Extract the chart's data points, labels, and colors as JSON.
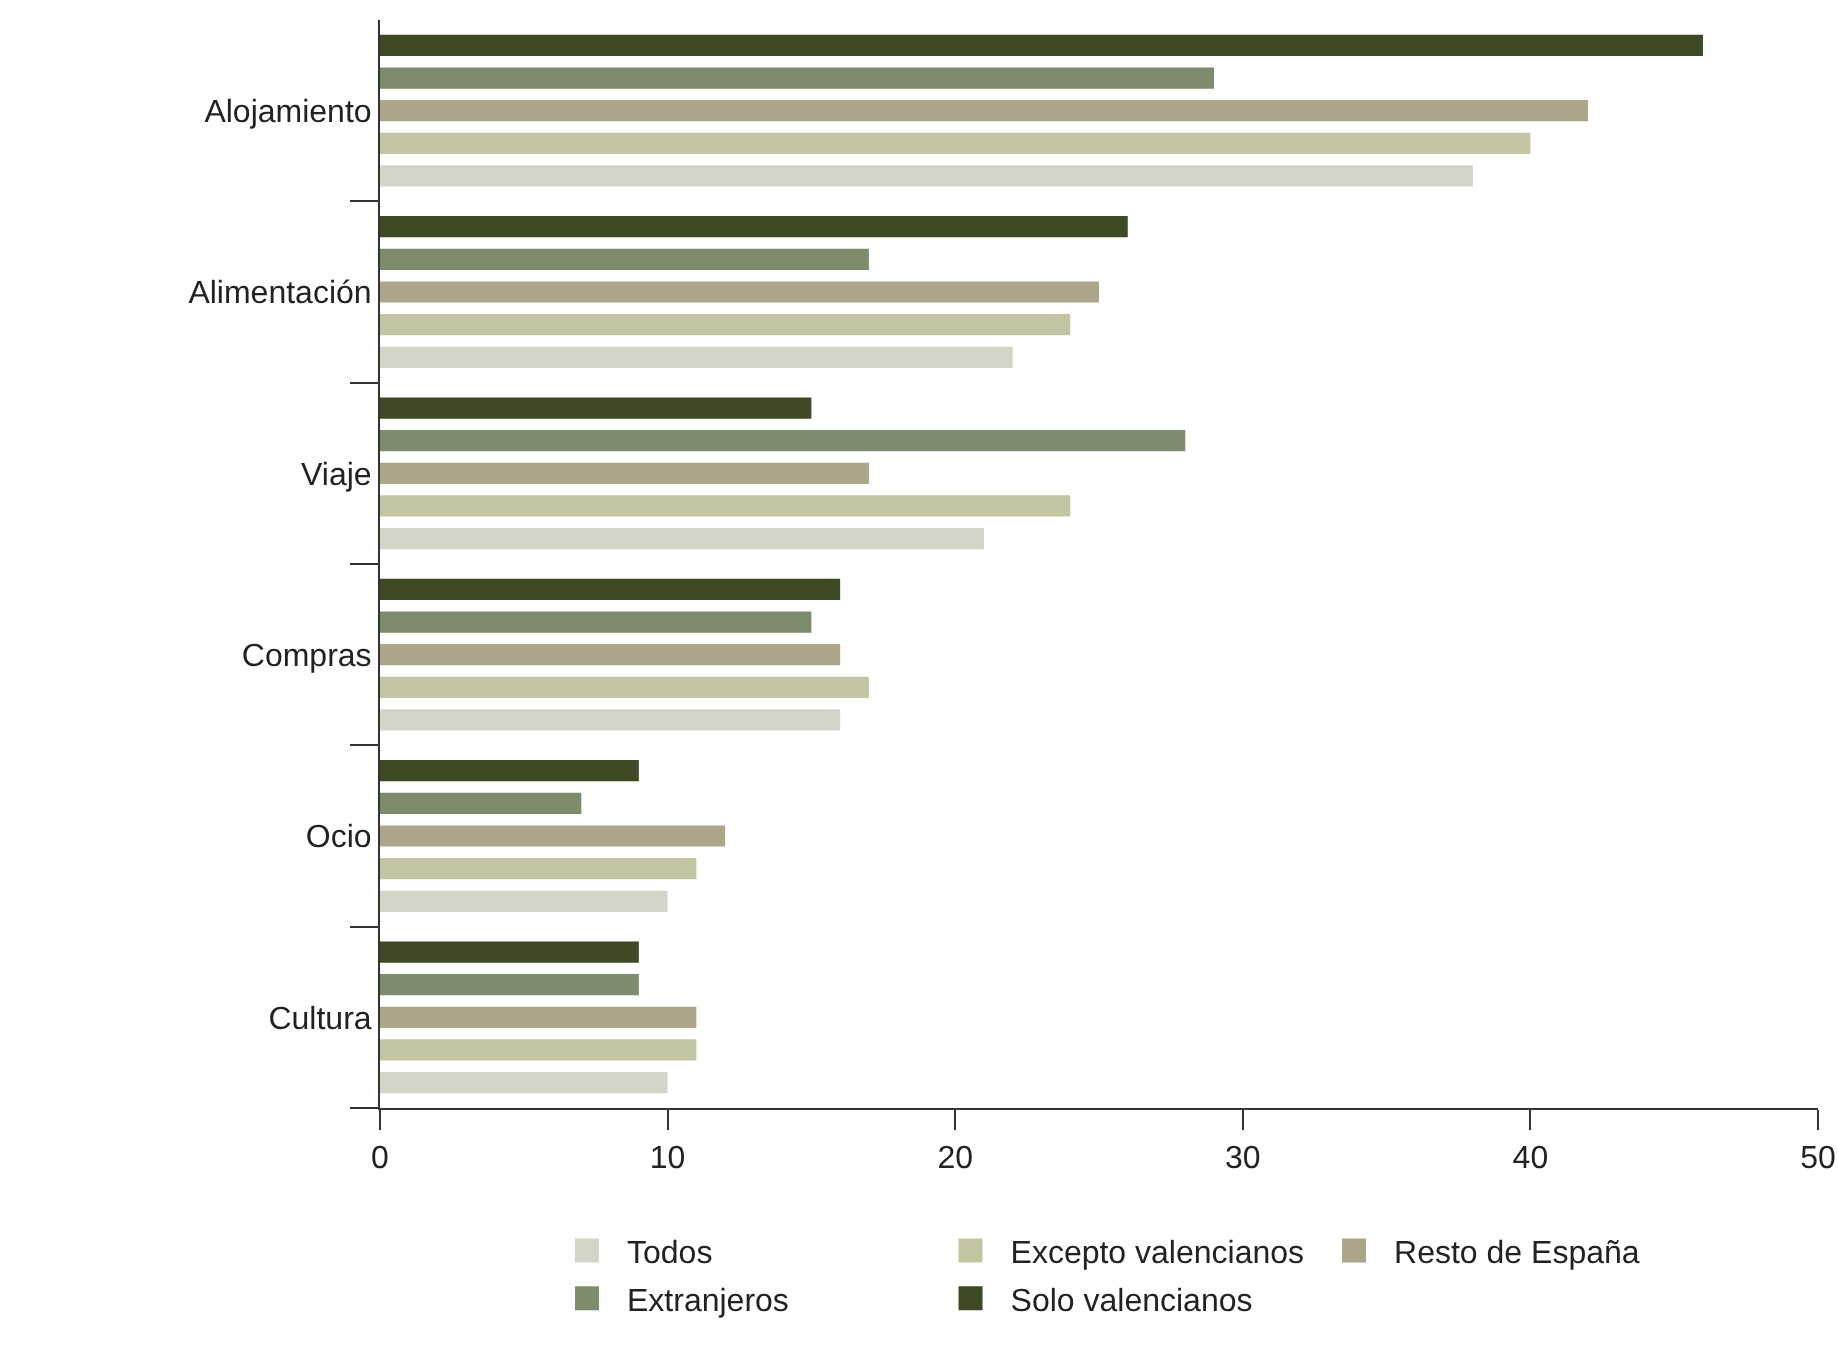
{
  "chart_data": {
    "type": "bar",
    "orientation": "horizontal",
    "categories": [
      "Alojamiento",
      "Alimentación",
      "Viaje",
      "Compras",
      "Ocio",
      "Cultura"
    ],
    "series": [
      {
        "name": "Todos",
        "color": "#d3d5c8",
        "values": [
          38,
          22,
          21,
          16,
          10,
          10
        ]
      },
      {
        "name": "Excepto valencianos",
        "color": "#c3c5a2",
        "values": [
          40,
          24,
          24,
          17,
          11,
          11
        ]
      },
      {
        "name": "Resto de España",
        "color": "#ada58a",
        "values": [
          42,
          25,
          17,
          16,
          12,
          11
        ]
      },
      {
        "name": "Extranjeros",
        "color": "#7d8c6c",
        "values": [
          29,
          17,
          28,
          15,
          7,
          9
        ]
      },
      {
        "name": "Solo valencianos",
        "color": "#3d4a25",
        "values": [
          46,
          26,
          15,
          16,
          9,
          9
        ]
      }
    ],
    "xlim": [
      0,
      50
    ],
    "xticks": [
      0,
      10,
      20,
      30,
      40,
      50
    ],
    "grid": false,
    "legend": "bottom"
  }
}
